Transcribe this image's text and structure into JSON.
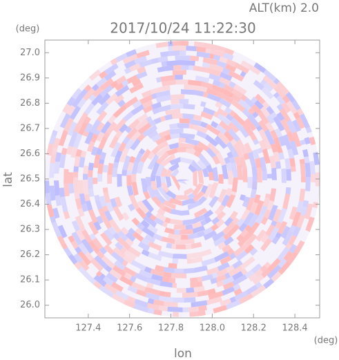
{
  "chart_data": {
    "type": "radar-ppi",
    "title": "2017/10/24 11:22:30",
    "subtitle": "ALT(km) 2.0",
    "x_label": "lon",
    "y_label": "lat",
    "x_unit": "(deg)",
    "y_unit": "(deg)",
    "xlim": [
      127.19,
      128.52
    ],
    "ylim": [
      25.95,
      27.05
    ],
    "xticks": [
      127.4,
      127.6,
      127.8,
      {
        "value": 128,
        "label": "128.0"
      },
      128.2,
      128.4
    ],
    "yticks": [
      {
        "value": 26,
        "label": "26.0"
      },
      26.1,
      26.2,
      26.3,
      26.4,
      26.5,
      26.6,
      26.7,
      26.8,
      26.9,
      {
        "value": 27,
        "label": "27.0"
      }
    ],
    "colors": [
      "#ffb8b8",
      "#bcbcff"
    ]
  }
}
